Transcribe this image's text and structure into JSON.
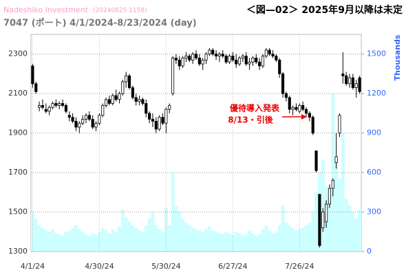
{
  "chart_data": {
    "type": "candlestick",
    "source": "Nadeshiko Investment",
    "timestamp": "(20240825 1158)",
    "subtitle": "7047 (ポート) 4/1/2024-8/23/2024 (day)",
    "title": "＜図—02＞ 2025年9月以降は未定",
    "y2_label": "Thousands",
    "annotations": [
      "優待導入発表",
      "8/13・引後"
    ],
    "categories": [
      "4/1/24",
      null,
      null,
      null,
      null,
      null,
      null,
      null,
      null,
      null,
      null,
      null,
      null,
      null,
      null,
      null,
      null,
      null,
      null,
      null,
      "4/30/24",
      null,
      null,
      null,
      null,
      null,
      null,
      null,
      null,
      null,
      null,
      null,
      null,
      null,
      null,
      null,
      null,
      null,
      null,
      null,
      "5/30/24",
      null,
      null,
      null,
      null,
      null,
      null,
      null,
      null,
      null,
      null,
      null,
      null,
      null,
      null,
      null,
      null,
      null,
      null,
      null,
      "6/27/24",
      null,
      null,
      null,
      null,
      null,
      null,
      null,
      null,
      null,
      null,
      null,
      null,
      null,
      null,
      null,
      null,
      null,
      null,
      null,
      "7/26/24",
      null,
      null,
      null,
      null,
      null,
      null,
      null,
      null,
      null,
      null,
      null,
      null,
      null,
      null,
      null,
      null,
      null,
      null
    ],
    "open": [
      2240,
      2150,
      2030,
      2040,
      2020,
      2010,
      2030,
      2050,
      2040,
      2050,
      2040,
      1990,
      1980,
      1960,
      1930,
      1950,
      1970,
      1990,
      1970,
      1930,
      1950,
      1990,
      2040,
      2070,
      2050,
      2090,
      2070,
      2100,
      2160,
      2190,
      2130,
      2080,
      2060,
      2070,
      2050,
      2000,
      1970,
      1960,
      1920,
      1980,
      1950,
      2020,
      2100,
      2280,
      2270,
      2240,
      2280,
      2290,
      2270,
      2300,
      2280,
      2250,
      2270,
      2300,
      2320,
      2300,
      2290,
      2300,
      2290,
      2260,
      2290,
      2270,
      2250,
      2280,
      2290,
      2250,
      2260,
      2280,
      2260,
      2240,
      2290,
      2320,
      2300,
      2290,
      2270,
      2200,
      2100,
      2080,
      2020,
      2030,
      2010,
      2040,
      2020,
      2000,
      1980,
      1810,
      1590,
      1420,
      1450,
      1540,
      1620,
      1750,
      1900,
      2200,
      2190,
      2150,
      2180,
      2130,
      2180
    ],
    "high": [
      2250,
      2160,
      2060,
      2070,
      2050,
      2040,
      2060,
      2070,
      2060,
      2070,
      2050,
      2010,
      2000,
      1980,
      1960,
      1990,
      2000,
      2010,
      1990,
      1960,
      2000,
      2050,
      2080,
      2090,
      2100,
      2120,
      2110,
      2170,
      2210,
      2200,
      2140,
      2100,
      2090,
      2080,
      2070,
      2010,
      2000,
      1980,
      1990,
      2000,
      2030,
      2050,
      2290,
      2300,
      2290,
      2290,
      2310,
      2300,
      2310,
      2320,
      2300,
      2280,
      2310,
      2330,
      2330,
      2320,
      2310,
      2320,
      2300,
      2300,
      2310,
      2300,
      2290,
      2300,
      2310,
      2280,
      2290,
      2300,
      2280,
      2300,
      2330,
      2330,
      2320,
      2300,
      2280,
      2210,
      2110,
      2090,
      2040,
      2050,
      2050,
      2060,
      2030,
      2010,
      1990,
      1810,
      1590,
      1520,
      1560,
      1640,
      1670,
      1900,
      2000,
      2310,
      2210,
      2200,
      2200,
      2170,
      2190
    ],
    "low": [
      2130,
      2100,
      2010,
      2020,
      2000,
      1990,
      2020,
      2030,
      2020,
      2030,
      2000,
      1960,
      1950,
      1910,
      1900,
      1940,
      1950,
      1960,
      1920,
      1910,
      1940,
      1980,
      2030,
      2040,
      2040,
      2060,
      2050,
      2090,
      2130,
      2120,
      2070,
      2040,
      2040,
      2040,
      1980,
      1950,
      1930,
      1900,
      1910,
      1940,
      1900,
      2000,
      2090,
      2250,
      2220,
      2230,
      2260,
      2260,
      2250,
      2270,
      2240,
      2220,
      2250,
      2290,
      2290,
      2270,
      2260,
      2280,
      2250,
      2250,
      2260,
      2230,
      2240,
      2260,
      2240,
      2220,
      2240,
      2250,
      2220,
      2230,
      2280,
      2290,
      2280,
      2260,
      2180,
      2080,
      2060,
      2000,
      1990,
      2010,
      2000,
      2010,
      1980,
      1960,
      1890,
      1700,
      1320,
      1400,
      1420,
      1520,
      1580,
      1720,
      1880,
      2150,
      2140,
      2130,
      2120,
      2080,
      2100
    ],
    "close": [
      2150,
      2110,
      2040,
      2030,
      2010,
      2030,
      2050,
      2040,
      2050,
      2040,
      2010,
      1980,
      1960,
      1930,
      1950,
      1970,
      1990,
      1970,
      1930,
      1950,
      1990,
      2040,
      2070,
      2050,
      2090,
      2070,
      2100,
      2160,
      2190,
      2130,
      2080,
      2060,
      2070,
      2050,
      2000,
      1970,
      1960,
      1920,
      1980,
      1950,
      2020,
      2040,
      2280,
      2270,
      2240,
      2280,
      2290,
      2270,
      2300,
      2280,
      2250,
      2270,
      2300,
      2320,
      2300,
      2290,
      2300,
      2290,
      2260,
      2290,
      2270,
      2250,
      2280,
      2290,
      2250,
      2260,
      2280,
      2260,
      2240,
      2290,
      2320,
      2300,
      2290,
      2270,
      2200,
      2100,
      2080,
      2020,
      2030,
      2020,
      2040,
      2020,
      2000,
      1980,
      1900,
      1710,
      1330,
      1500,
      1540,
      1620,
      1660,
      1780,
      1990,
      2190,
      2150,
      2180,
      2130,
      2150,
      2110
    ],
    "up_color": "#ffffff",
    "down_color": "#000000",
    "volume": {
      "axis": "y2",
      "color": "#ccffff",
      "values": [
        300,
        250,
        200,
        180,
        160,
        150,
        170,
        140,
        130,
        120,
        150,
        160,
        180,
        200,
        170,
        150,
        130,
        120,
        140,
        130,
        150,
        180,
        160,
        140,
        170,
        150,
        190,
        320,
        260,
        230,
        200,
        180,
        160,
        150,
        200,
        250,
        300,
        200,
        170,
        150,
        330,
        200,
        600,
        350,
        300,
        250,
        220,
        200,
        180,
        170,
        160,
        150,
        170,
        190,
        160,
        150,
        140,
        130,
        150,
        140,
        130,
        150,
        140,
        120,
        130,
        160,
        140,
        120,
        130,
        170,
        200,
        160,
        140,
        150,
        200,
        350,
        220,
        200,
        180,
        160,
        170,
        180,
        200,
        220,
        300,
        450,
        600,
        700,
        500,
        450,
        1200,
        700,
        550,
        900,
        400,
        350,
        300,
        250,
        320
      ]
    },
    "ylim": [
      1300,
      2400
    ],
    "yticks": [
      1300,
      1500,
      1700,
      1900,
      2100,
      2300
    ],
    "y2lim": [
      0,
      1650
    ],
    "y2ticks": [
      0,
      300,
      600,
      900,
      1200,
      1500
    ],
    "grid": true
  }
}
